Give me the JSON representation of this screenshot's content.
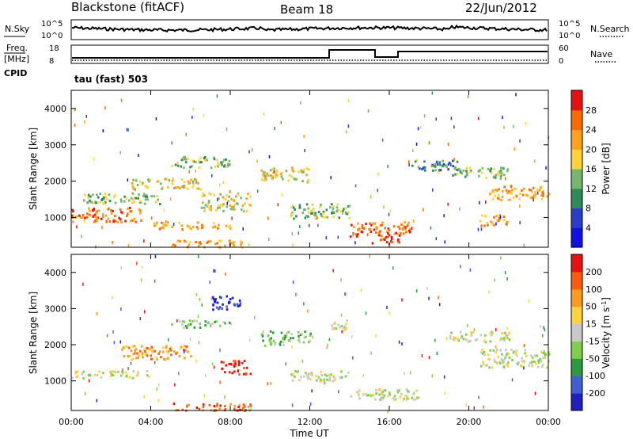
{
  "header": {
    "title": "Blackstone (fitACF)",
    "beam": "Beam 18",
    "date": "22/Jun/2012"
  },
  "noise_panel": {
    "left_label": "N.Sky",
    "left_ticks": [
      "10^5",
      "10^0"
    ],
    "right_label": "N.Search",
    "right_ticks": [
      "10^5",
      "10^0"
    ]
  },
  "freq_panel": {
    "left_label_line1": "Freq.",
    "left_label_line2": "[MHz]",
    "left_ticks": [
      "18",
      "8"
    ],
    "right_label": "Nave",
    "right_ticks": [
      "60",
      "0"
    ]
  },
  "cpid": {
    "label": "CPID",
    "text": "tau (fast) 503"
  },
  "colors": {
    "power": [
      "#1010e8",
      "#2a3ec8",
      "#2e8b57",
      "#78b66e",
      "#ffd23c",
      "#ffa020",
      "#ff6a00",
      "#e81010"
    ],
    "velocity": [
      "#2020c0",
      "#4060d0",
      "#2e9a3e",
      "#7fcf4a",
      "#c8c8c8",
      "#ffd040",
      "#ff9a20",
      "#ff5a10",
      "#e81010"
    ]
  },
  "chart_data": [
    {
      "type": "heatmap",
      "title": "Power",
      "ylabel": "Slant Range [km]",
      "xlabel": "Time UT",
      "ylim": [
        180,
        4500
      ],
      "yticks": [
        "1000",
        "2000",
        "3000",
        "4000"
      ],
      "xticks": [
        "00:00",
        "04:00",
        "08:00",
        "12:00",
        "16:00",
        "20:00",
        "00:00"
      ],
      "colorbar_label": "Power [dB]",
      "colorbar_ticks": [
        "28",
        "24",
        "20",
        "16",
        "12",
        "8",
        "4"
      ],
      "echo_bands": [
        {
          "t0": 0.0,
          "t1": 3.5,
          "r0": 900,
          "r1": 1300,
          "level": 6
        },
        {
          "t0": 0.5,
          "t1": 4.5,
          "r0": 1400,
          "r1": 1700,
          "level": 3
        },
        {
          "t0": 3.0,
          "t1": 6.5,
          "r0": 1800,
          "r1": 2100,
          "level": 4
        },
        {
          "t0": 5.0,
          "t1": 8.0,
          "r0": 2400,
          "r1": 2700,
          "level": 3
        },
        {
          "t0": 6.5,
          "t1": 9.0,
          "r0": 1200,
          "r1": 1700,
          "level": 4
        },
        {
          "t0": 4.0,
          "t1": 8.0,
          "r0": 700,
          "r1": 900,
          "level": 5
        },
        {
          "t0": 5.0,
          "t1": 9.0,
          "r0": 200,
          "r1": 400,
          "level": 5
        },
        {
          "t0": 9.5,
          "t1": 12.0,
          "r0": 2000,
          "r1": 2400,
          "level": 4
        },
        {
          "t0": 11.0,
          "t1": 14.0,
          "r0": 1000,
          "r1": 1400,
          "level": 3
        },
        {
          "t0": 14.0,
          "t1": 17.0,
          "r0": 500,
          "r1": 900,
          "level": 6
        },
        {
          "t0": 15.0,
          "t1": 16.5,
          "r0": 300,
          "r1": 500,
          "level": 7
        },
        {
          "t0": 17.0,
          "t1": 19.5,
          "r0": 2300,
          "r1": 2600,
          "level": 2
        },
        {
          "t0": 20.5,
          "t1": 22.0,
          "r0": 800,
          "r1": 1100,
          "level": 5
        },
        {
          "t0": 21.0,
          "t1": 24.0,
          "r0": 1500,
          "r1": 1900,
          "level": 5
        },
        {
          "t0": 19.0,
          "t1": 22.0,
          "r0": 2100,
          "r1": 2400,
          "level": 3
        }
      ]
    },
    {
      "type": "heatmap",
      "title": "Velocity",
      "ylabel": "Slant Range [km]",
      "xlabel": "Time UT",
      "ylim": [
        180,
        4500
      ],
      "yticks": [
        "1000",
        "2000",
        "3000",
        "4000"
      ],
      "xticks": [
        "00:00",
        "04:00",
        "08:00",
        "12:00",
        "16:00",
        "20:00",
        "00:00"
      ],
      "colorbar_label": "Velocity [m s",
      "colorbar_label_sup": "-1",
      "colorbar_label_end": "]",
      "colorbar_ticks": [
        "200",
        "100",
        "50",
        "15",
        "-15",
        "-50",
        "-100",
        "-200"
      ],
      "echo_bands": [
        {
          "t0": 0.0,
          "t1": 4.0,
          "r0": 1100,
          "r1": 1300,
          "level": 4
        },
        {
          "t0": 2.5,
          "t1": 6.0,
          "r0": 1600,
          "r1": 2000,
          "level": 6
        },
        {
          "t0": 5.0,
          "t1": 8.0,
          "r0": 2500,
          "r1": 2700,
          "level": 3
        },
        {
          "t0": 7.0,
          "t1": 8.5,
          "r0": 3000,
          "r1": 3400,
          "level": 0
        },
        {
          "t0": 7.5,
          "t1": 9.0,
          "r0": 1200,
          "r1": 1600,
          "level": 8
        },
        {
          "t0": 5.0,
          "t1": 9.0,
          "r0": 200,
          "r1": 400,
          "level": 7
        },
        {
          "t0": 9.5,
          "t1": 12.0,
          "r0": 2000,
          "r1": 2400,
          "level": 3
        },
        {
          "t0": 11.0,
          "t1": 14.0,
          "r0": 1000,
          "r1": 1300,
          "level": 4
        },
        {
          "t0": 14.0,
          "t1": 17.5,
          "r0": 500,
          "r1": 800,
          "level": 4
        },
        {
          "t0": 13.0,
          "t1": 14.0,
          "r0": 2400,
          "r1": 2700,
          "level": 4
        },
        {
          "t0": 20.5,
          "t1": 24.0,
          "r0": 1400,
          "r1": 1900,
          "level": 4
        },
        {
          "t0": 19.0,
          "t1": 22.0,
          "r0": 2100,
          "r1": 2400,
          "level": 4
        }
      ]
    }
  ]
}
